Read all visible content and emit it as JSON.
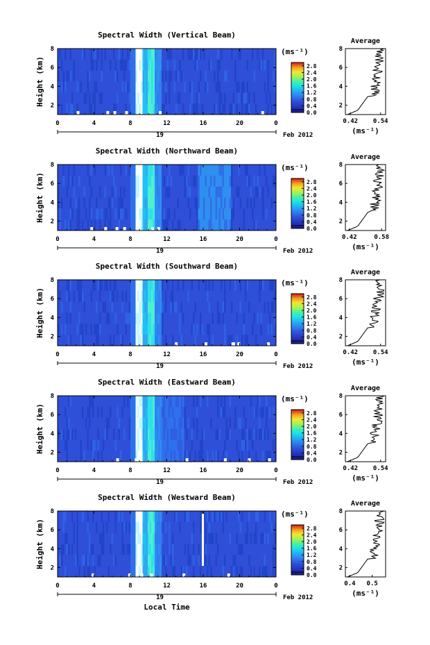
{
  "chart_data": [
    {
      "type": "heatmap",
      "title": "Spectral Width (Vertical Beam)",
      "ylabel": "Height (km)",
      "xlabel": "",
      "x_ticks": [
        "0",
        "4",
        "8",
        "12",
        "16",
        "20",
        "0"
      ],
      "y_ticks": [
        "2",
        "4",
        "6",
        "8"
      ],
      "xlim": [
        0,
        24
      ],
      "ylim": [
        1,
        8
      ],
      "date_day": "19",
      "date_month": "Feb 2012",
      "colorbar": {
        "unit": "(ms⁻¹)",
        "ticks": [
          "0.0",
          "0.4",
          "0.8",
          "1.2",
          "1.6",
          "2.0",
          "2.4",
          "2.8"
        ],
        "range": [
          0,
          3.0
        ]
      },
      "profile": {
        "title": "Average",
        "xlabel": "(ms⁻¹)",
        "x_ticks": [
          "0.42",
          "0.54"
        ],
        "xlim": [
          0.4,
          0.56
        ],
        "y_ticks": [
          "2",
          "4",
          "6",
          "8"
        ],
        "ylim": [
          1,
          8
        ]
      }
    },
    {
      "type": "heatmap",
      "title": "Spectral Width (Northward Beam)",
      "ylabel": "Height (km)",
      "xlabel": "",
      "x_ticks": [
        "0",
        "4",
        "8",
        "12",
        "16",
        "20",
        "0"
      ],
      "y_ticks": [
        "2",
        "4",
        "6",
        "8"
      ],
      "xlim": [
        0,
        24
      ],
      "ylim": [
        1,
        8
      ],
      "date_day": "19",
      "date_month": "Feb 2012",
      "colorbar": {
        "unit": "(ms⁻¹)",
        "ticks": [
          "0.0",
          "0.4",
          "0.8",
          "1.2",
          "1.6",
          "2.0",
          "2.4",
          "2.8"
        ],
        "range": [
          0,
          3.0
        ]
      },
      "profile": {
        "title": "Average",
        "xlabel": "(ms⁻¹)",
        "x_ticks": [
          "0.42",
          "0.58"
        ],
        "xlim": [
          0.4,
          0.6
        ],
        "y_ticks": [
          "2",
          "4",
          "6",
          "8"
        ],
        "ylim": [
          1,
          8
        ]
      }
    },
    {
      "type": "heatmap",
      "title": "Spectral Width (Southward Beam)",
      "ylabel": "Height (km)",
      "xlabel": "",
      "x_ticks": [
        "0",
        "4",
        "8",
        "12",
        "16",
        "20",
        "0"
      ],
      "y_ticks": [
        "2",
        "4",
        "6",
        "8"
      ],
      "xlim": [
        0,
        24
      ],
      "ylim": [
        1,
        8
      ],
      "date_day": "19",
      "date_month": "Feb 2012",
      "colorbar": {
        "unit": "(ms⁻¹)",
        "ticks": [
          "0.0",
          "0.4",
          "0.8",
          "1.2",
          "1.6",
          "2.0",
          "2.4",
          "2.8"
        ],
        "range": [
          0,
          3.0
        ]
      },
      "profile": {
        "title": "Average",
        "xlabel": "(ms⁻¹)",
        "x_ticks": [
          "0.42",
          "0.54"
        ],
        "xlim": [
          0.4,
          0.56
        ],
        "y_ticks": [
          "2",
          "4",
          "6",
          "8"
        ],
        "ylim": [
          1,
          8
        ]
      }
    },
    {
      "type": "heatmap",
      "title": "Spectral Width (Eastward Beam)",
      "ylabel": "Height (km)",
      "xlabel": "",
      "x_ticks": [
        "0",
        "4",
        "8",
        "12",
        "16",
        "20",
        "0"
      ],
      "y_ticks": [
        "2",
        "4",
        "6",
        "8"
      ],
      "xlim": [
        0,
        24
      ],
      "ylim": [
        1,
        8
      ],
      "date_day": "19",
      "date_month": "Feb 2012",
      "colorbar": {
        "unit": "(ms⁻¹)",
        "ticks": [
          "0.0",
          "0.4",
          "0.8",
          "1.2",
          "1.6",
          "2.0",
          "2.4",
          "2.8"
        ],
        "range": [
          0,
          3.0
        ]
      },
      "profile": {
        "title": "Average",
        "xlabel": "(ms⁻¹)",
        "x_ticks": [
          "0.42",
          "0.54"
        ],
        "xlim": [
          0.4,
          0.56
        ],
        "y_ticks": [
          "2",
          "4",
          "6",
          "8"
        ],
        "ylim": [
          1,
          8
        ]
      }
    },
    {
      "type": "heatmap",
      "title": "Spectral Width (Westward Beam)",
      "ylabel": "Height (km)",
      "xlabel": "Local Time",
      "x_ticks": [
        "0",
        "4",
        "8",
        "12",
        "16",
        "20",
        "0"
      ],
      "y_ticks": [
        "2",
        "4",
        "6",
        "8"
      ],
      "xlim": [
        0,
        24
      ],
      "ylim": [
        1,
        8
      ],
      "date_day": "19",
      "date_month": "Feb 2012",
      "colorbar": {
        "unit": "(ms⁻¹)",
        "ticks": [
          "0.0",
          "0.4",
          "0.8",
          "1.2",
          "1.6",
          "2.0",
          "2.4",
          "2.8"
        ],
        "range": [
          0,
          3.0
        ]
      },
      "profile": {
        "title": "Average",
        "xlabel": "(ms⁻¹)",
        "x_ticks": [
          "0.4",
          "0.5"
        ],
        "xlim": [
          0.38,
          0.56
        ],
        "y_ticks": [
          "2",
          "4",
          "6",
          "8"
        ],
        "ylim": [
          1,
          8
        ]
      }
    }
  ],
  "colors": {
    "background": "#2f4fd8",
    "colormap": [
      "#1a1a8a",
      "#2232b8",
      "#2f4fd8",
      "#2f7ff0",
      "#22b4f5",
      "#1de6e0",
      "#4ef0a0",
      "#a8f250",
      "#f0e830",
      "#f8a020",
      "#f05020",
      "#d01818"
    ]
  }
}
